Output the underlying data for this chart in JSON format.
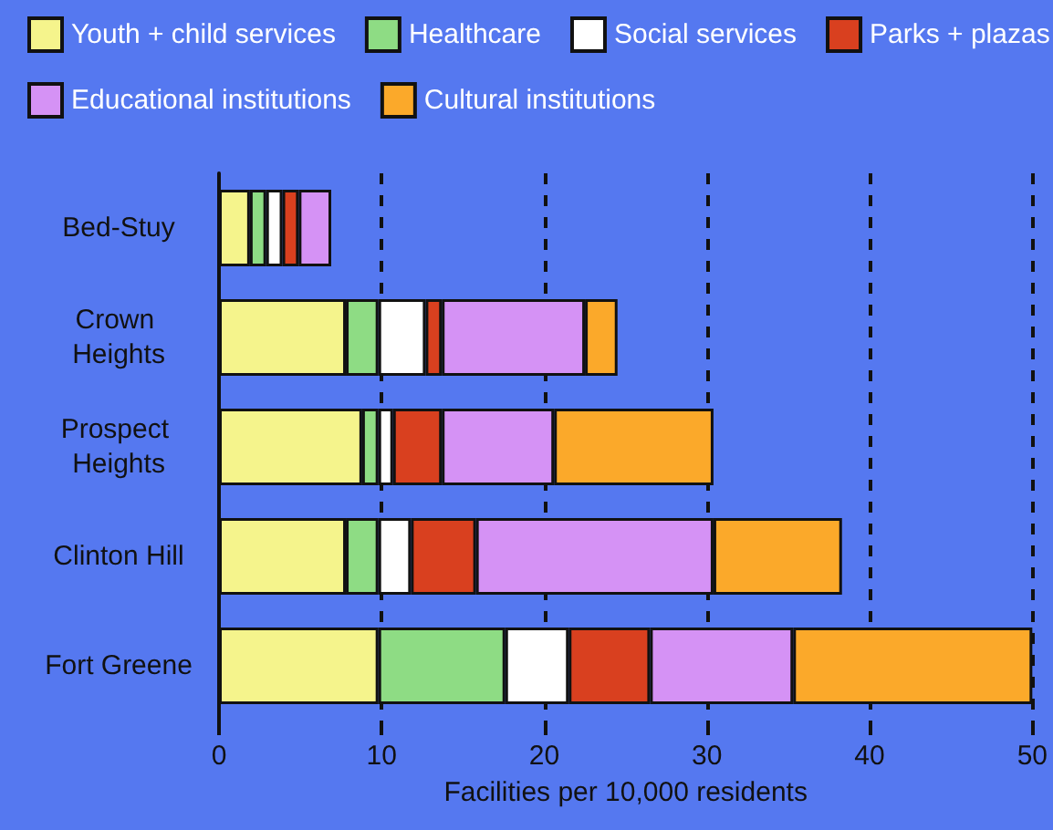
{
  "chart_data": {
    "type": "bar",
    "orientation": "horizontal",
    "stacked": true,
    "xlabel": "Facilities per 10,000 residents",
    "categories": [
      "Bed-Stuy",
      "Crown Heights",
      "Prospect Heights",
      "Clinton Hill",
      "Fort Greene"
    ],
    "series": [
      {
        "name": "Youth + child services",
        "color": "#f5f48c",
        "values": [
          1.9,
          7.8,
          8.8,
          7.8,
          9.8
        ]
      },
      {
        "name": "Healthcare",
        "color": "#8edc84",
        "values": [
          1.0,
          2.0,
          1.0,
          2.0,
          7.8
        ]
      },
      {
        "name": "Social services",
        "color": "#ffffff",
        "values": [
          1.0,
          2.9,
          0.9,
          2.0,
          3.9
        ]
      },
      {
        "name": "Parks + plazas",
        "color": "#d9401f",
        "values": [
          1.0,
          1.0,
          3.0,
          4.0,
          5.0
        ]
      },
      {
        "name": "Educational institutions",
        "color": "#d592f5",
        "values": [
          2.0,
          8.8,
          6.9,
          14.6,
          8.8
        ]
      },
      {
        "name": "Cultural institutions",
        "color": "#fba92a",
        "values": [
          null,
          2.0,
          9.8,
          7.9,
          14.7
        ]
      }
    ],
    "xlim": [
      0,
      50
    ],
    "xticks": [
      0,
      10,
      20,
      30,
      40,
      50
    ],
    "grid": "x",
    "legend": "top"
  }
}
